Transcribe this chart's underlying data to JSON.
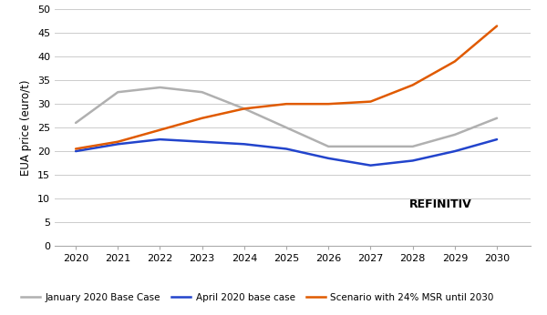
{
  "years": [
    2020,
    2021,
    2022,
    2023,
    2024,
    2025,
    2026,
    2027,
    2028,
    2029,
    2030
  ],
  "january_base": [
    26,
    32.5,
    33.5,
    32.5,
    29,
    25,
    21,
    21,
    21,
    23.5,
    27
  ],
  "april_base": [
    20,
    21.5,
    22.5,
    22,
    21.5,
    20.5,
    18.5,
    17,
    18,
    20,
    22.5
  ],
  "scenario_24msr": [
    20.5,
    22,
    24.5,
    27,
    29,
    30,
    30,
    30.5,
    34,
    39,
    46.5
  ],
  "january_color": "#b0b0b0",
  "april_color": "#2244cc",
  "scenario_color": "#e05a00",
  "ylabel": "EUA price (euro/t)",
  "ylim": [
    0,
    50
  ],
  "yticks": [
    0,
    5,
    10,
    15,
    20,
    25,
    30,
    35,
    40,
    45,
    50
  ],
  "xlim": [
    2019.5,
    2030.8
  ],
  "legend_jan": "January 2020 Base Case",
  "legend_apr": "April 2020 base case",
  "legend_scen": "Scenario with 24% MSR until 2030",
  "bg_color": "#ffffff",
  "grid_color": "#cccccc",
  "linewidth": 1.8,
  "label_fontsize": 8.5,
  "tick_fontsize": 8,
  "legend_fontsize": 7.5,
  "refinitiv_color": "#1a3399"
}
